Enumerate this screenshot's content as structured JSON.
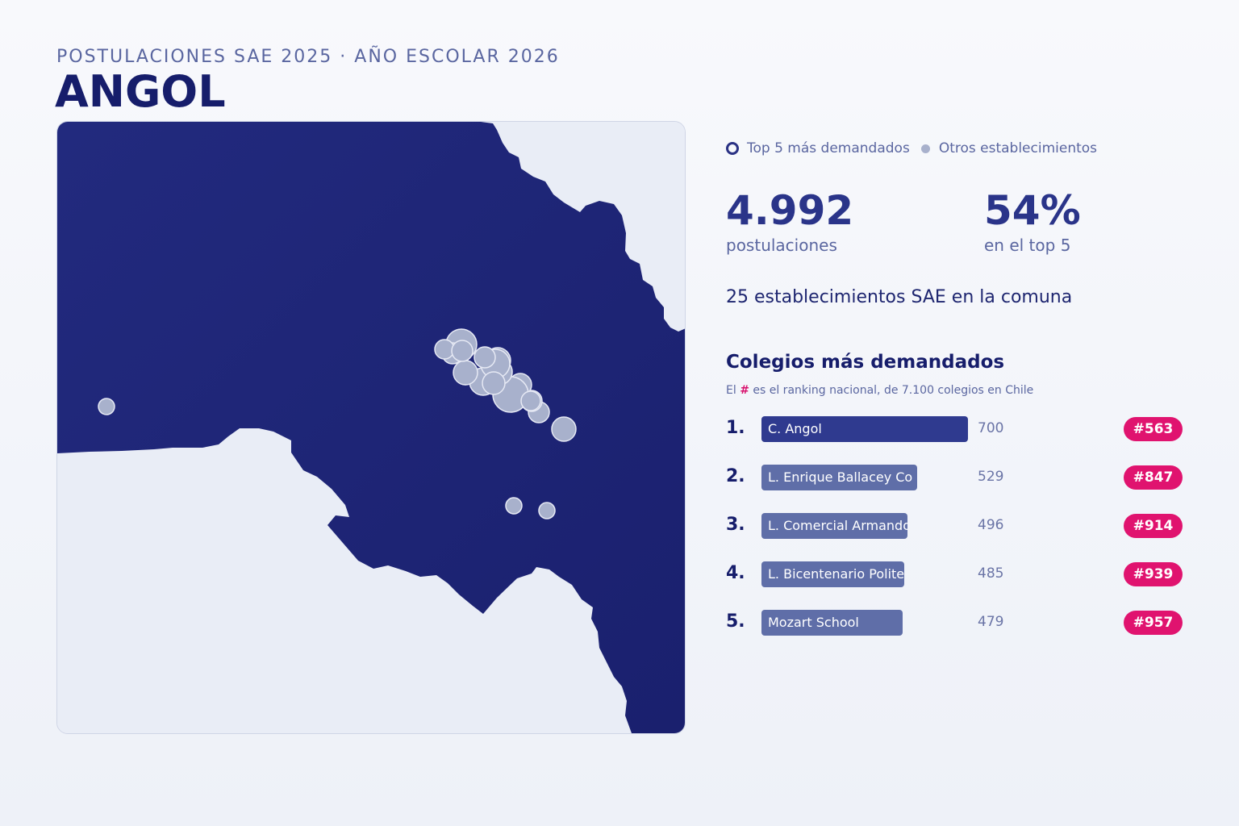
{
  "header": {
    "subtitle": "POSTULACIONES SAE 2025 · AÑO ESCOLAR 2026",
    "title": "ANGOL"
  },
  "legend": {
    "top5_label": "Top 5 más demandados",
    "others_label": "Otros establecimientos"
  },
  "stats": {
    "postulaciones_value": "4.992",
    "postulaciones_label": "postulaciones",
    "top5_share_value": "54%",
    "top5_share_label": "en el top 5",
    "count_line": "25 establecimientos SAE en la comuna"
  },
  "ranking": {
    "title": "Colegios más demandados",
    "note_prefix": "El ",
    "note_hash": "#",
    "note_suffix": " es el ranking nacional, de 7.100 colegios en Chile",
    "max_value": 700,
    "items": [
      {
        "index": "1.",
        "name": "C. Angol",
        "value": 700,
        "value_text": "700",
        "national_rank": "#563",
        "color": "#2f3a8f"
      },
      {
        "index": "2.",
        "name": "L. Enrique Ballacey Co",
        "value": 529,
        "value_text": "529",
        "national_rank": "#847",
        "color": "#5f6ea8"
      },
      {
        "index": "3.",
        "name": "L. Comercial Armando D",
        "value": 496,
        "value_text": "496",
        "national_rank": "#914",
        "color": "#5f6ea8"
      },
      {
        "index": "4.",
        "name": "L. Bicentenario Polite",
        "value": 485,
        "value_text": "485",
        "national_rank": "#939",
        "color": "#5f6ea8"
      },
      {
        "index": "5.",
        "name": "Mozart School",
        "value": 479,
        "value_text": "479",
        "national_rank": "#957",
        "color": "#5f6ea8"
      }
    ]
  },
  "colors": {
    "commune_fill": "#1f2679",
    "outside_fill": "#e9edf6",
    "school_dot": "#a8b1cc",
    "badge": "#e0136f"
  }
}
